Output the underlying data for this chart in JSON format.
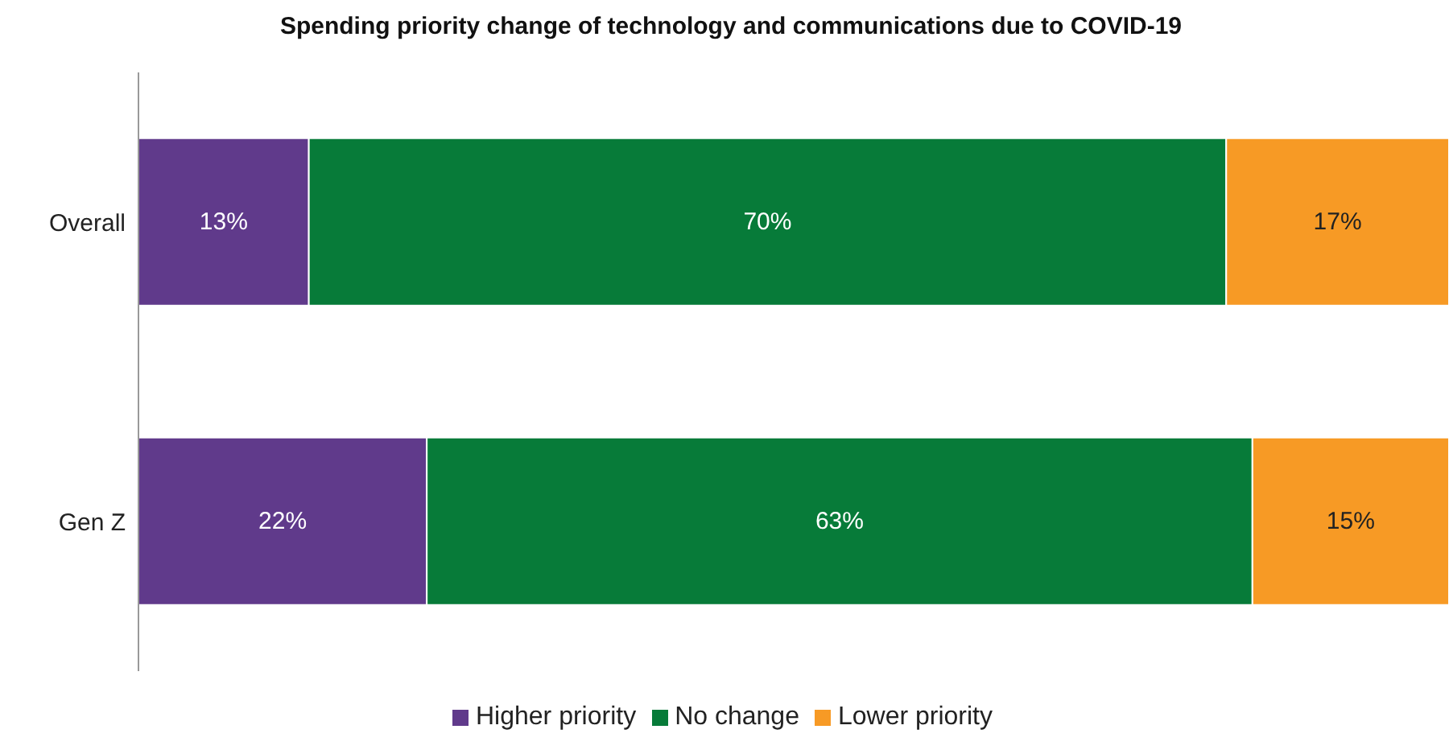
{
  "chart_data": {
    "type": "bar",
    "title": "Spending priority change of technology and communications due to COVID-19",
    "orientation": "horizontal",
    "stacked": true,
    "categories": [
      "Overall",
      "Gen Z"
    ],
    "series": [
      {
        "name": "Higher priority",
        "color": "#603a8b",
        "values": [
          13,
          22
        ],
        "value_labels": [
          "13%",
          "22%"
        ]
      },
      {
        "name": "No change",
        "color": "#077b39",
        "values": [
          70,
          63
        ],
        "value_labels": [
          "70%",
          "63%"
        ]
      },
      {
        "name": "Lower priority",
        "color": "#f79a25",
        "values": [
          17,
          15
        ],
        "value_labels": [
          "17%",
          "15%"
        ]
      }
    ],
    "legend": "bottom",
    "grid": false
  }
}
